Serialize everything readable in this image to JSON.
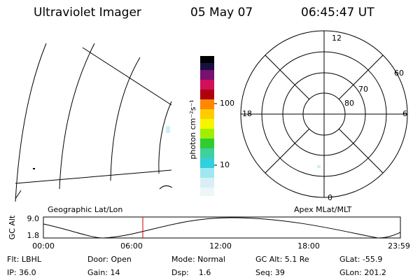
{
  "header": {
    "title": "Ultraviolet Imager",
    "date": "05 May 07",
    "time": "06:45:47 UT"
  },
  "colorbar": {
    "label": "photon cm⁻²s⁻¹",
    "tick_labels": [
      "100",
      "10"
    ]
  },
  "polar": {
    "labels": [
      "12",
      "0",
      "18",
      "6",
      "60",
      "70",
      "80"
    ]
  },
  "map_labels": [
    "Geographic Lat/Lon",
    "Apex MLat/MLT"
  ],
  "orbit": {
    "y_label": "GC Alt",
    "y_tick_labels": [
      "9.0",
      "1.8"
    ],
    "x_tick_labels": [
      "00:00",
      "06:00",
      "12:00",
      "18:00",
      "23:59"
    ]
  },
  "footer": [
    [
      "Flt: LBHL",
      "Door: Open",
      "Mode: Normal",
      "GC Alt: 5.1 Re",
      "GLat: -55.9"
    ],
    [
      "IP: 36.0",
      "Gain: 14",
      "Dsp:    1.6",
      "Seq: 39",
      "GLon: 201.2"
    ]
  ]
}
